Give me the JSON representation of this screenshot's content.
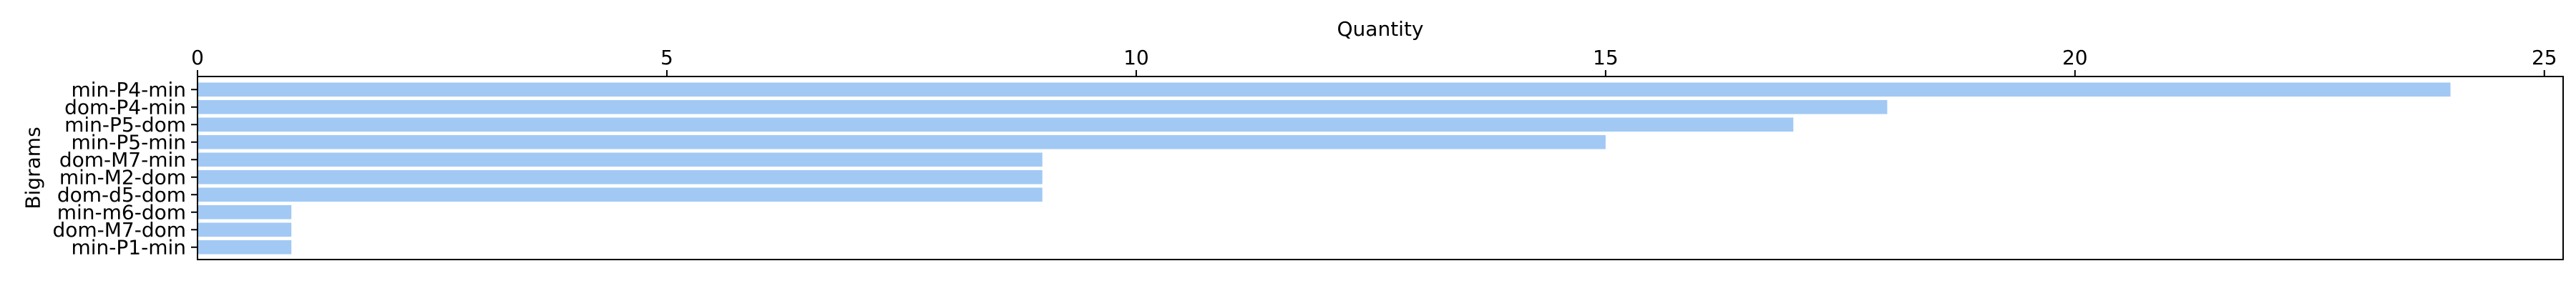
{
  "chart_data": {
    "type": "bar",
    "orientation": "horizontal",
    "title": "",
    "xlabel": "Quantity",
    "ylabel": "Bigrams",
    "x_axis_position": "top",
    "xlim": [
      0,
      25.2
    ],
    "x_ticks": [
      0,
      5,
      10,
      15,
      20,
      25
    ],
    "x_tick_labels": [
      "0",
      "5",
      "10",
      "15",
      "20",
      "25"
    ],
    "grid": false,
    "legend": "none",
    "bar_color": "#a1c9f4",
    "categories": [
      "min-P4-min",
      "dom-P4-min",
      "min-P5-dom",
      "min-P5-min",
      "dom-M7-min",
      "min-M2-dom",
      "dom-d5-dom",
      "min-m6-dom",
      "dom-M7-dom",
      "min-P1-min"
    ],
    "values": [
      24,
      18,
      17,
      15,
      9,
      9,
      9,
      1,
      1,
      1
    ]
  }
}
